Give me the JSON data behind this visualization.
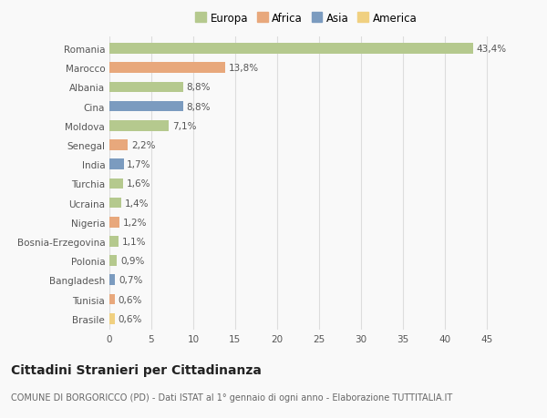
{
  "countries": [
    "Romania",
    "Marocco",
    "Albania",
    "Cina",
    "Moldova",
    "Senegal",
    "India",
    "Turchia",
    "Ucraina",
    "Nigeria",
    "Bosnia-Erzegovina",
    "Polonia",
    "Bangladesh",
    "Tunisia",
    "Brasile"
  ],
  "values": [
    43.4,
    13.8,
    8.8,
    8.8,
    7.1,
    2.2,
    1.7,
    1.6,
    1.4,
    1.2,
    1.1,
    0.9,
    0.7,
    0.6,
    0.6
  ],
  "labels": [
    "43,4%",
    "13,8%",
    "8,8%",
    "8,8%",
    "7,1%",
    "2,2%",
    "1,7%",
    "1,6%",
    "1,4%",
    "1,2%",
    "1,1%",
    "0,9%",
    "0,7%",
    "0,6%",
    "0,6%"
  ],
  "colors": [
    "#b5c98e",
    "#e8a87c",
    "#b5c98e",
    "#7b9bbf",
    "#b5c98e",
    "#e8a87c",
    "#7b9bbf",
    "#b5c98e",
    "#b5c98e",
    "#e8a87c",
    "#b5c98e",
    "#b5c98e",
    "#7b9bbf",
    "#e8a87c",
    "#f0d080"
  ],
  "continent_labels": [
    "Europa",
    "Africa",
    "Asia",
    "America"
  ],
  "continent_colors": [
    "#b5c98e",
    "#e8a87c",
    "#7b9bbf",
    "#f0d080"
  ],
  "xlim": [
    0,
    47
  ],
  "xticks": [
    0,
    5,
    10,
    15,
    20,
    25,
    30,
    35,
    40,
    45
  ],
  "title": "Cittadini Stranieri per Cittadinanza",
  "subtitle": "COMUNE DI BORGORICCO (PD) - Dati ISTAT al 1° gennaio di ogni anno - Elaborazione TUTTITALIA.IT",
  "background_color": "#f9f9f9",
  "bar_height": 0.55,
  "label_fontsize": 7.5,
  "tick_fontsize": 7.5,
  "title_fontsize": 10,
  "subtitle_fontsize": 7
}
